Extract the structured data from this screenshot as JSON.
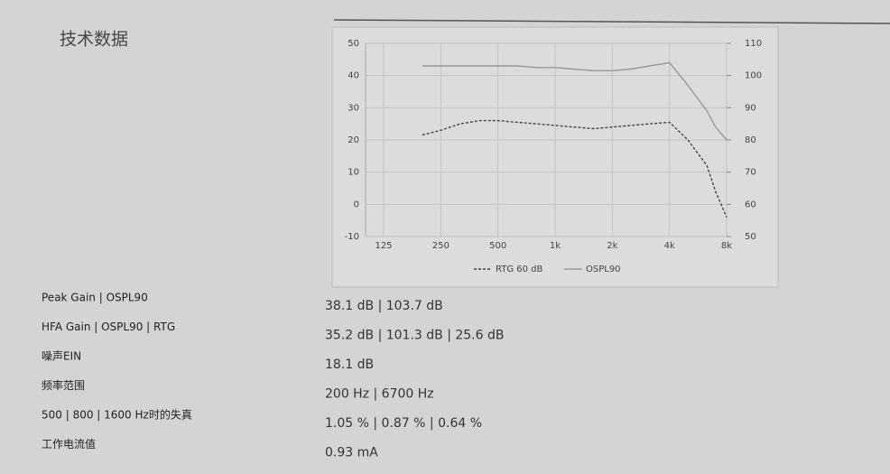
{
  "header": {
    "title": "技术数据"
  },
  "chart_data": {
    "type": "line",
    "log_x": true,
    "grid": true,
    "legend": "bottom",
    "x": [
      200,
      250,
      315,
      400,
      500,
      630,
      800,
      1000,
      1250,
      1600,
      2000,
      2500,
      3150,
      4000,
      5000,
      6300,
      7000,
      8000
    ],
    "xlim": [
      125,
      8000
    ],
    "xticks": [
      125,
      250,
      500,
      {
        "value": 1000,
        "label": "1k"
      },
      {
        "value": 2000,
        "label": "2k"
      },
      {
        "value": 4000,
        "label": "4k"
      },
      {
        "value": 8000,
        "label": "8k"
      }
    ],
    "ylim": [
      -10,
      50
    ],
    "yticks": [
      -10,
      0,
      10,
      20,
      30,
      40,
      50
    ],
    "y2lim": [
      50,
      110
    ],
    "y2ticks": [
      50,
      60,
      70,
      80,
      90,
      100,
      110
    ],
    "series": [
      {
        "name": "RTG 60 dB",
        "color": "#444444",
        "values": [
          21.5,
          23,
          25,
          26,
          26,
          25.5,
          25,
          24.5,
          24,
          23.5,
          24,
          24.5,
          25,
          25.5,
          20,
          12,
          4,
          -4
        ]
      },
      {
        "name": "OSPL90",
        "color": "#999999",
        "axis": "y2",
        "values": [
          103,
          103,
          103,
          103,
          103,
          103,
          102.5,
          102.5,
          102,
          101.5,
          101.5,
          102,
          103,
          104,
          97,
          89,
          84,
          80
        ]
      }
    ]
  },
  "table": {
    "rows": [
      [
        "Peak Gain | OSPL90",
        "38.1 dB | 103.7 dB"
      ],
      [
        "HFA Gain | OSPL90 | RTG",
        "35.2 dB | 101.3 dB | 25.6 dB"
      ],
      [
        "噪声EIN",
        "18.1 dB"
      ],
      [
        "频率范围",
        "200 Hz | 6700 Hz"
      ],
      [
        "500 | 800 | 1600 Hz时的失真",
        "1.05 % | 0.87 % | 0.64 %"
      ],
      [
        "工作电流值",
        "0.93 mA"
      ]
    ]
  }
}
